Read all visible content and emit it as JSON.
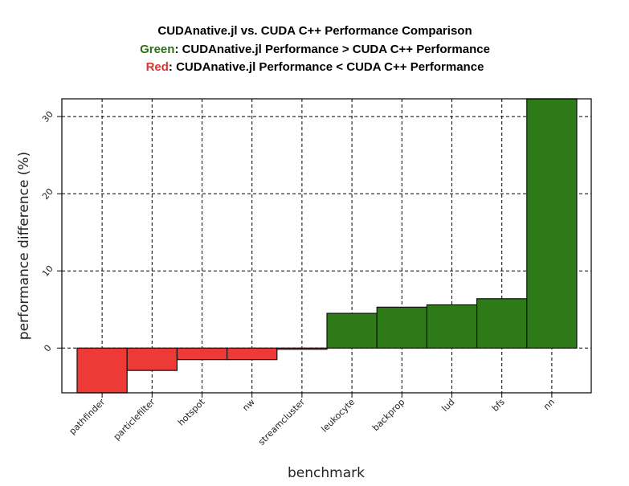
{
  "chart_data": {
    "type": "bar",
    "title": "CUDAnative.jl vs. CUDA C++ Performance Comparison",
    "subtitle_lines": [
      {
        "keyword": "Green",
        "text": ": CUDAnative.jl Performance > CUDA C++ Performance",
        "color": "#2f6e18"
      },
      {
        "keyword": "Red",
        "text": ": CUDAnative.jl Performance < CUDA C++ Performance",
        "color": "#e0332e"
      }
    ],
    "xlabel": "benchmark",
    "ylabel": "performance difference (%)",
    "categories": [
      "pathfinder",
      "particlefilter",
      "hotspot",
      "nw",
      "streamcluster",
      "leukocyte",
      "backprop",
      "lud",
      "bfs",
      "nn"
    ],
    "values": [
      -5.8,
      -2.9,
      -1.5,
      -1.5,
      -0.15,
      4.5,
      5.3,
      5.6,
      6.4,
      32.3
    ],
    "yticks": [
      0,
      10,
      20,
      30
    ],
    "ylim": [
      -5.8,
      32.3
    ],
    "grid": true,
    "colors": {
      "positive": "#2e7a18",
      "negative": "#ee3a36",
      "edge": "#111111"
    }
  }
}
